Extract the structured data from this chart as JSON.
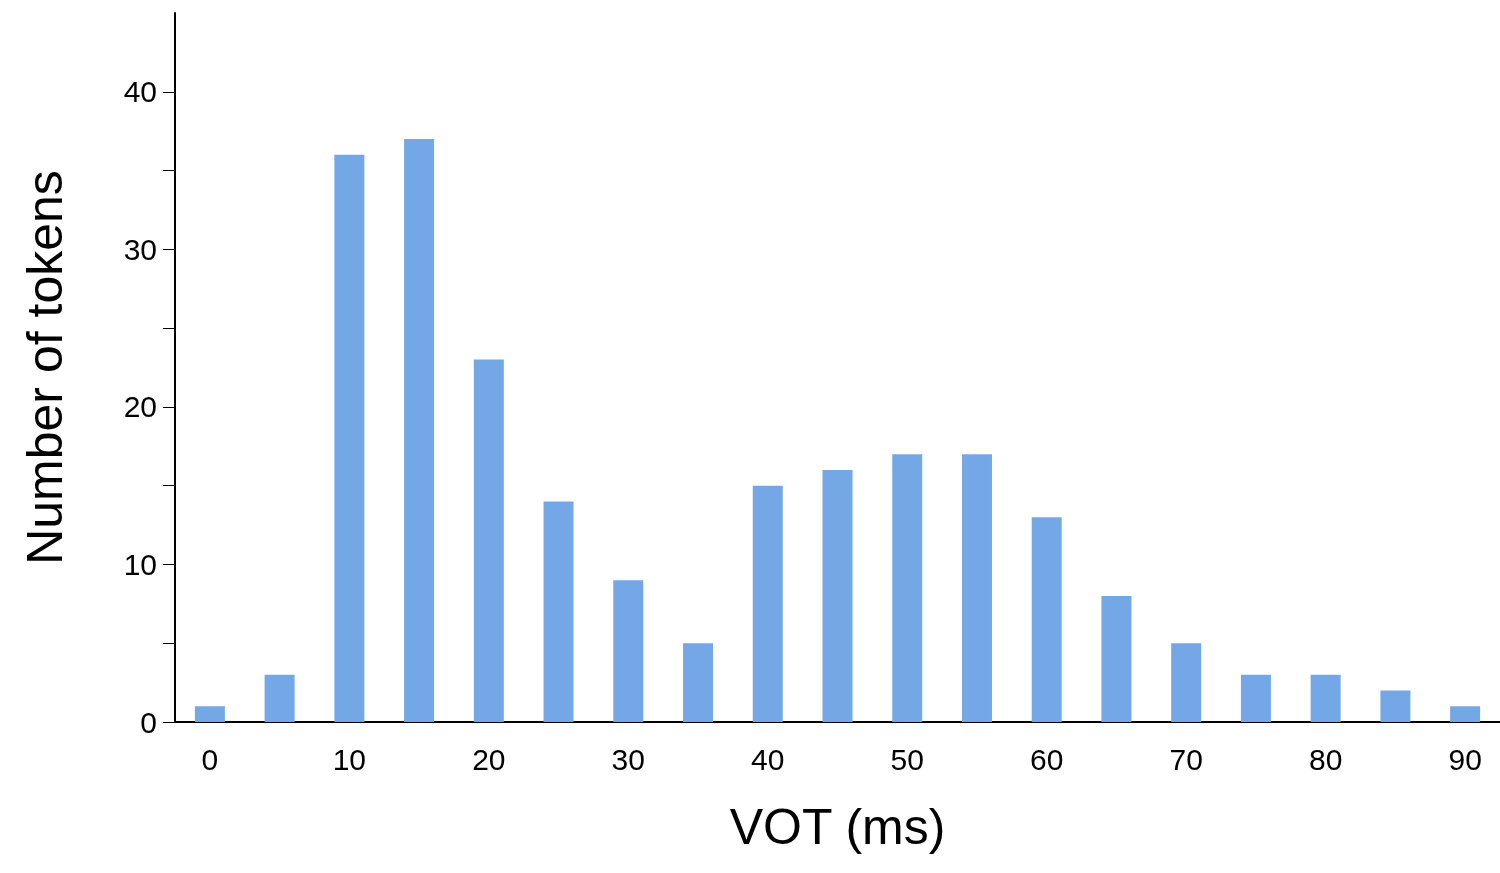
{
  "chart_data": {
    "type": "bar",
    "xlabel": "VOT (ms)",
    "ylabel": "Number of tokens",
    "categories": [
      "0",
      null,
      "10",
      null,
      "20",
      null,
      "30",
      null,
      "40",
      null,
      "50",
      null,
      "60",
      null,
      "70",
      null,
      "80",
      null,
      "90"
    ],
    "values": [
      1,
      3,
      36,
      37,
      23,
      14,
      9,
      5,
      15,
      16,
      17,
      17,
      13,
      8,
      5,
      3,
      3,
      2,
      1
    ],
    "color": "#74a7e6",
    "ylim": [
      0,
      45
    ],
    "yticks": [
      0,
      {
        "value": 5,
        "label": null
      },
      10,
      {
        "value": 15,
        "label": null
      },
      20,
      {
        "value": 25,
        "label": null
      },
      30,
      {
        "value": 35,
        "label": null
      },
      40
    ],
    "grid": false
  }
}
